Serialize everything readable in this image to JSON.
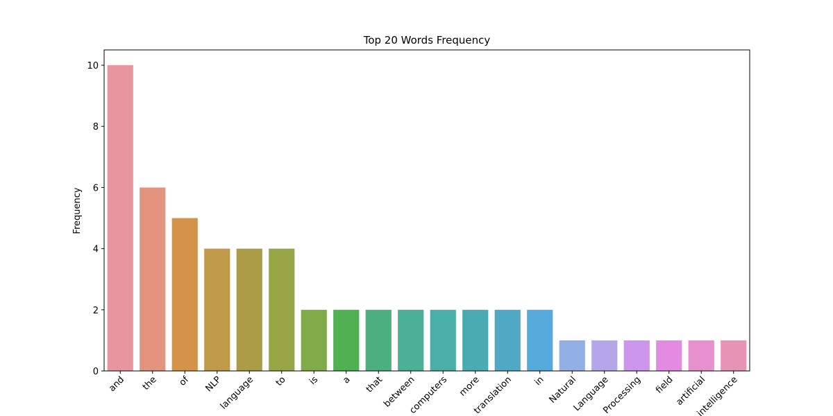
{
  "chart_data": {
    "type": "bar",
    "title": "Top 20 Words Frequency",
    "xlabel": "",
    "ylabel": "Frequency",
    "ylim": [
      0,
      10.5
    ],
    "yticks": [
      0,
      2,
      4,
      6,
      8,
      10
    ],
    "grid": false,
    "legend": "none",
    "categories": [
      "and",
      "the",
      "of",
      "NLP",
      "language",
      "to",
      "is",
      "a",
      "that",
      "between",
      "computers",
      "more",
      "translation",
      "in",
      "Natural",
      "Language",
      "Processing",
      "field",
      "artificial",
      "intelligence"
    ],
    "values": [
      10,
      6,
      5,
      4,
      4,
      4,
      2,
      2,
      2,
      2,
      2,
      2,
      2,
      2,
      1,
      1,
      1,
      1,
      1,
      1
    ],
    "colors": [
      "#e8959f",
      "#e4937f",
      "#d5934a",
      "#bf9a4b",
      "#ac9c48",
      "#98a546",
      "#7fab48",
      "#4fb152",
      "#4caf7e",
      "#4caf98",
      "#4aafa6",
      "#4aacb2",
      "#4fa9c4",
      "#55a9db",
      "#93b0e6",
      "#b4a6e8",
      "#cb96ec",
      "#e38ae3",
      "#e691cd",
      "#e793b6"
    ]
  }
}
